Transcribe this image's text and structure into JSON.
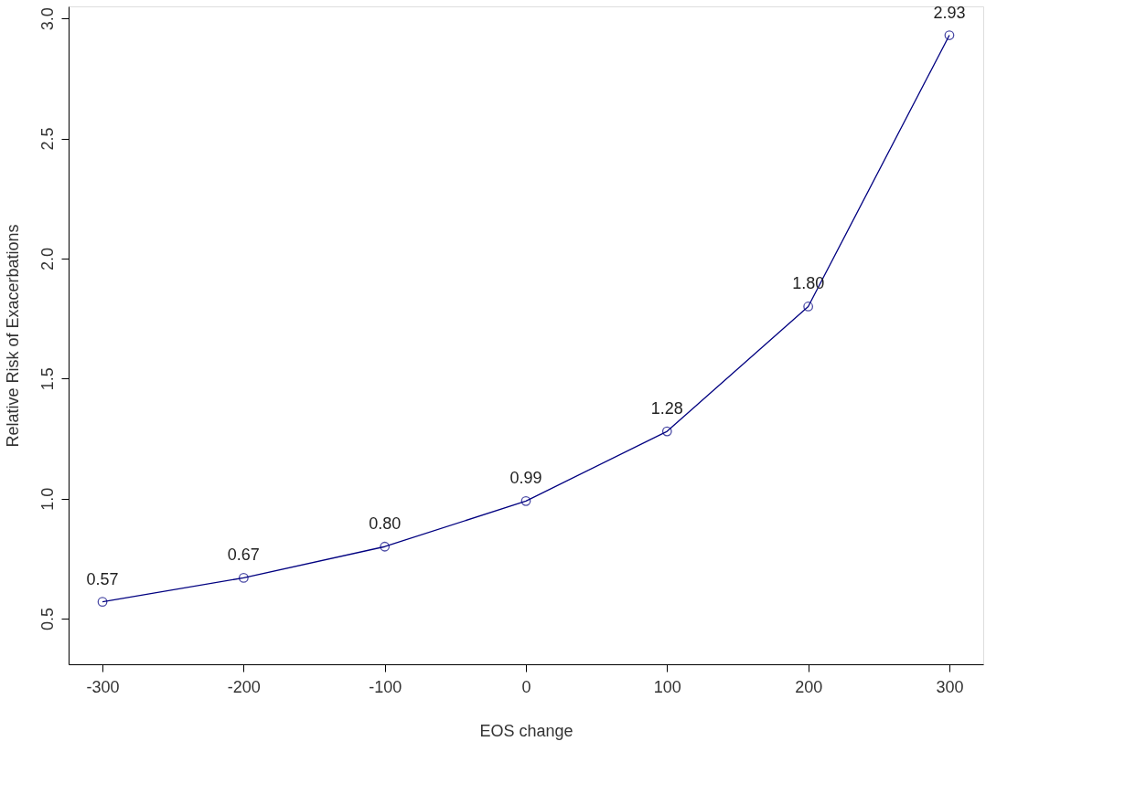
{
  "chart_data": {
    "type": "line",
    "xlabel": "EOS change",
    "ylabel": "Relative Risk of Exacerbations",
    "x": [
      -300,
      -200,
      -100,
      0,
      100,
      200,
      300
    ],
    "series": [
      {
        "color": "#000080",
        "values": [
          0.57,
          0.67,
          0.8,
          0.99,
          1.28,
          1.8,
          2.93
        ]
      }
    ],
    "value_labels": [
      "0.57",
      "0.67",
      "0.80",
      "0.99",
      "1.28",
      "1.80",
      "2.93"
    ],
    "xlim": [
      -324,
      324
    ],
    "ylim": [
      0.31,
      3.05
    ],
    "xticks": [
      -300,
      -200,
      -100,
      0,
      100,
      200,
      300
    ],
    "yticks": [
      0.5,
      {
        "value": 1,
        "label": "1.0"
      },
      1.5,
      {
        "value": 2,
        "label": "2.0"
      },
      2.5,
      {
        "value": 3,
        "label": "3.0"
      }
    ],
    "marker": "circle",
    "line_style": "solid",
    "grid": false
  }
}
